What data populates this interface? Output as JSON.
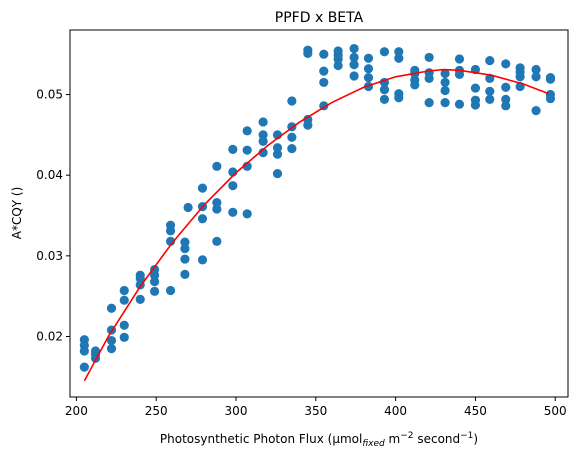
{
  "chart_data": {
    "type": "scatter",
    "title": "PPFD x BETA",
    "xlabel": {
      "prefix": "Photosynthetic Photon Flux (μmol",
      "subscript": "fixed",
      "middle": " m",
      "sup1": "−2",
      "suffix": " second",
      "sup2": "−1",
      "close": ")"
    },
    "ylabel": "A*CQY ()",
    "xlim": [
      196,
      508
    ],
    "ylim": [
      0.0125,
      0.058
    ],
    "xticks": [
      200,
      250,
      300,
      350,
      400,
      450,
      500
    ],
    "yticks": [
      0.02,
      0.03,
      0.04,
      0.05
    ],
    "xtick_labels": [
      "200",
      "250",
      "300",
      "350",
      "400",
      "450",
      "500"
    ],
    "ytick_labels": [
      "0.02",
      "0.03",
      "0.04",
      "0.05"
    ],
    "colors": {
      "points": "#1f77b4",
      "fit": "#ff0000"
    },
    "series": [
      {
        "name": "observations",
        "kind": "scatter",
        "points": [
          [
            205,
            0.0196
          ],
          [
            205,
            0.0189
          ],
          [
            205,
            0.0182
          ],
          [
            205,
            0.0162
          ],
          [
            212,
            0.0182
          ],
          [
            212,
            0.0178
          ],
          [
            212,
            0.0173
          ],
          [
            222,
            0.0235
          ],
          [
            222,
            0.0208
          ],
          [
            222,
            0.0195
          ],
          [
            222,
            0.0185
          ],
          [
            230,
            0.0257
          ],
          [
            230,
            0.0245
          ],
          [
            230,
            0.0214
          ],
          [
            230,
            0.0199
          ],
          [
            240,
            0.0276
          ],
          [
            240,
            0.0272
          ],
          [
            240,
            0.0264
          ],
          [
            240,
            0.0246
          ],
          [
            249,
            0.0283
          ],
          [
            249,
            0.0276
          ],
          [
            249,
            0.0268
          ],
          [
            249,
            0.0256
          ],
          [
            259,
            0.0338
          ],
          [
            259,
            0.0331
          ],
          [
            259,
            0.0318
          ],
          [
            259,
            0.0257
          ],
          [
            268,
            0.0317
          ],
          [
            268,
            0.0309
          ],
          [
            268,
            0.0296
          ],
          [
            268,
            0.0277
          ],
          [
            279,
            0.0384
          ],
          [
            279,
            0.0361
          ],
          [
            279,
            0.0346
          ],
          [
            279,
            0.0295
          ],
          [
            270,
            0.036
          ],
          [
            288,
            0.0411
          ],
          [
            288,
            0.0366
          ],
          [
            288,
            0.0358
          ],
          [
            288,
            0.0318
          ],
          [
            298,
            0.0432
          ],
          [
            298,
            0.0404
          ],
          [
            298,
            0.0387
          ],
          [
            298,
            0.0354
          ],
          [
            307,
            0.0455
          ],
          [
            307,
            0.0431
          ],
          [
            307,
            0.0411
          ],
          [
            307,
            0.0352
          ],
          [
            317,
            0.0466
          ],
          [
            317,
            0.045
          ],
          [
            317,
            0.0442
          ],
          [
            317,
            0.0428
          ],
          [
            326,
            0.045
          ],
          [
            326,
            0.0434
          ],
          [
            326,
            0.0426
          ],
          [
            326,
            0.0402
          ],
          [
            335,
            0.0492
          ],
          [
            335,
            0.046
          ],
          [
            335,
            0.0447
          ],
          [
            335,
            0.0433
          ],
          [
            345,
            0.0555
          ],
          [
            345,
            0.0551
          ],
          [
            345,
            0.0469
          ],
          [
            345,
            0.0462
          ],
          [
            355,
            0.055
          ],
          [
            355,
            0.0529
          ],
          [
            355,
            0.0515
          ],
          [
            355,
            0.0486
          ],
          [
            364,
            0.0554
          ],
          [
            364,
            0.0549
          ],
          [
            364,
            0.0544
          ],
          [
            364,
            0.0536
          ],
          [
            374,
            0.0557
          ],
          [
            374,
            0.0546
          ],
          [
            374,
            0.0537
          ],
          [
            374,
            0.0523
          ],
          [
            383,
            0.0545
          ],
          [
            383,
            0.0532
          ],
          [
            383,
            0.0521
          ],
          [
            383,
            0.051
          ],
          [
            393,
            0.0553
          ],
          [
            393,
            0.0515
          ],
          [
            393,
            0.0506
          ],
          [
            393,
            0.0494
          ],
          [
            402,
            0.0553
          ],
          [
            402,
            0.0545
          ],
          [
            402,
            0.0501
          ],
          [
            402,
            0.0496
          ],
          [
            412,
            0.053
          ],
          [
            412,
            0.0526
          ],
          [
            412,
            0.0518
          ],
          [
            412,
            0.0512
          ],
          [
            421,
            0.0546
          ],
          [
            421,
            0.0527
          ],
          [
            421,
            0.052
          ],
          [
            421,
            0.049
          ],
          [
            431,
            0.0526
          ],
          [
            431,
            0.0515
          ],
          [
            431,
            0.0505
          ],
          [
            431,
            0.049
          ],
          [
            440,
            0.0544
          ],
          [
            440,
            0.053
          ],
          [
            440,
            0.0525
          ],
          [
            440,
            0.0488
          ],
          [
            450,
            0.0531
          ],
          [
            450,
            0.0508
          ],
          [
            450,
            0.0493
          ],
          [
            450,
            0.0487
          ],
          [
            459,
            0.0542
          ],
          [
            459,
            0.052
          ],
          [
            459,
            0.0504
          ],
          [
            459,
            0.0494
          ],
          [
            469,
            0.0538
          ],
          [
            469,
            0.0509
          ],
          [
            469,
            0.0494
          ],
          [
            469,
            0.0486
          ],
          [
            478,
            0.0533
          ],
          [
            478,
            0.0528
          ],
          [
            478,
            0.0522
          ],
          [
            478,
            0.051
          ],
          [
            488,
            0.0531
          ],
          [
            488,
            0.0522
          ],
          [
            488,
            0.048
          ],
          [
            497,
            0.0521
          ],
          [
            497,
            0.0519
          ],
          [
            497,
            0.05
          ],
          [
            497,
            0.0495
          ]
        ]
      },
      {
        "name": "fit",
        "kind": "line",
        "points": [
          [
            205,
            0.0145
          ],
          [
            220,
            0.02
          ],
          [
            240,
            0.0262
          ],
          [
            260,
            0.0316
          ],
          [
            280,
            0.0363
          ],
          [
            300,
            0.0403
          ],
          [
            320,
            0.0437
          ],
          [
            340,
            0.0466
          ],
          [
            360,
            0.049
          ],
          [
            380,
            0.0509
          ],
          [
            400,
            0.0522
          ],
          [
            420,
            0.0529
          ],
          [
            430,
            0.0531
          ],
          [
            440,
            0.053
          ],
          [
            460,
            0.0524
          ],
          [
            480,
            0.0513
          ],
          [
            496,
            0.0501
          ]
        ]
      }
    ]
  }
}
